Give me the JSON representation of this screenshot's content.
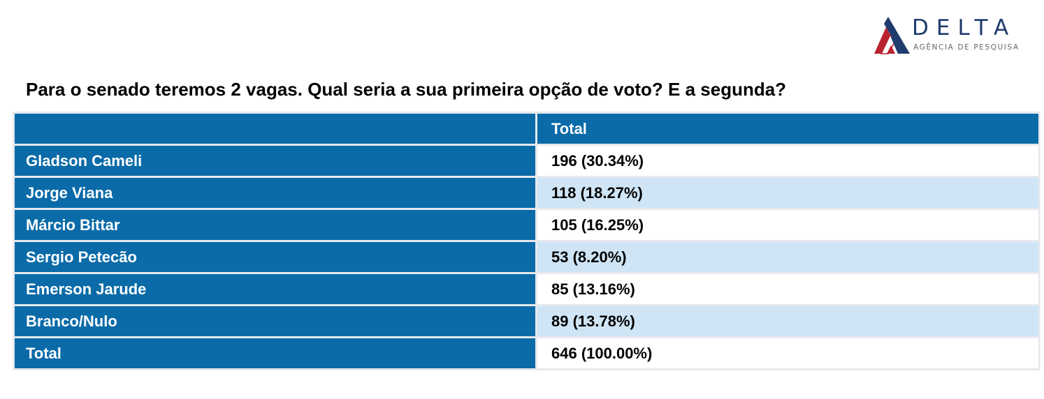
{
  "logo": {
    "name": "DELTA",
    "tagline": "AGÊNCIA DE PESQUISA"
  },
  "question": "Para o senado teremos 2 vagas. Qual seria a sua primeira opção de voto? E a segunda?",
  "chart_data": {
    "type": "table",
    "title": "Para o senado teremos 2 vagas. Qual seria a sua primeira opção de voto? E a segunda?",
    "columns": [
      "",
      "Total"
    ],
    "rows": [
      {
        "label": "Gladson Cameli",
        "value": "196 (30.34%)",
        "count": 196,
        "percent": 30.34
      },
      {
        "label": "Jorge Viana",
        "value": "118 (18.27%)",
        "count": 118,
        "percent": 18.27
      },
      {
        "label": "Márcio Bittar",
        "value": "105 (16.25%)",
        "count": 105,
        "percent": 16.25
      },
      {
        "label": "Sergio Petecão",
        "value": "53 (8.20%)",
        "count": 53,
        "percent": 8.2
      },
      {
        "label": "Emerson Jarude",
        "value": "85 (13.16%)",
        "count": 85,
        "percent": 13.16
      },
      {
        "label": "Branco/Nulo",
        "value": "89 (13.78%)",
        "count": 89,
        "percent": 13.78
      },
      {
        "label": "Total",
        "value": "646 (100.00%)",
        "count": 646,
        "percent": 100.0
      }
    ]
  },
  "colors": {
    "header_blue": "#0a6ba8",
    "stripe_blue": "#cfe5f6",
    "logo_navy": "#1f3c6e",
    "logo_red": "#b8232f"
  }
}
